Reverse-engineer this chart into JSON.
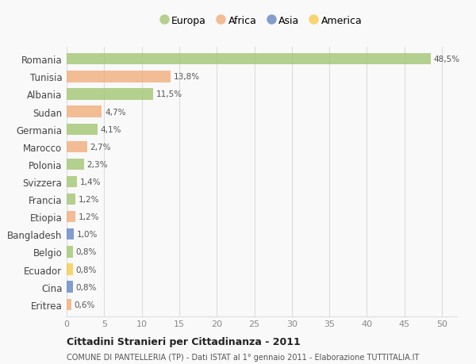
{
  "countries": [
    "Romania",
    "Tunisia",
    "Albania",
    "Sudan",
    "Germania",
    "Marocco",
    "Polonia",
    "Svizzera",
    "Francia",
    "Etiopia",
    "Bangladesh",
    "Belgio",
    "Ecuador",
    "Cina",
    "Eritrea"
  ],
  "values": [
    48.5,
    13.8,
    11.5,
    4.7,
    4.1,
    2.7,
    2.3,
    1.4,
    1.2,
    1.2,
    1.0,
    0.8,
    0.8,
    0.8,
    0.6
  ],
  "labels": [
    "48,5%",
    "13,8%",
    "11,5%",
    "4,7%",
    "4,1%",
    "2,7%",
    "2,3%",
    "1,4%",
    "1,2%",
    "1,2%",
    "1,0%",
    "0,8%",
    "0,8%",
    "0,8%",
    "0,6%"
  ],
  "continents": [
    "Europa",
    "Africa",
    "Europa",
    "Africa",
    "Europa",
    "Africa",
    "Europa",
    "Europa",
    "Europa",
    "Africa",
    "Asia",
    "Europa",
    "America",
    "Asia",
    "Africa"
  ],
  "continent_colors": {
    "Europa": "#9dc36a",
    "Africa": "#f0a872",
    "Asia": "#5b7fbf",
    "America": "#f5c842"
  },
  "legend_order": [
    "Europa",
    "Africa",
    "Asia",
    "America"
  ],
  "xlim": [
    0,
    52
  ],
  "xticks": [
    0,
    5,
    10,
    15,
    20,
    25,
    30,
    35,
    40,
    45,
    50
  ],
  "title": "Cittadini Stranieri per Cittadinanza - 2011",
  "subtitle": "COMUNE DI PANTELLERIA (TP) - Dati ISTAT al 1° gennaio 2011 - Elaborazione TUTTITALIA.IT",
  "bg_color": "#f9f9f9",
  "grid_color": "#dddddd",
  "bar_alpha": 0.75,
  "bar_height": 0.65
}
